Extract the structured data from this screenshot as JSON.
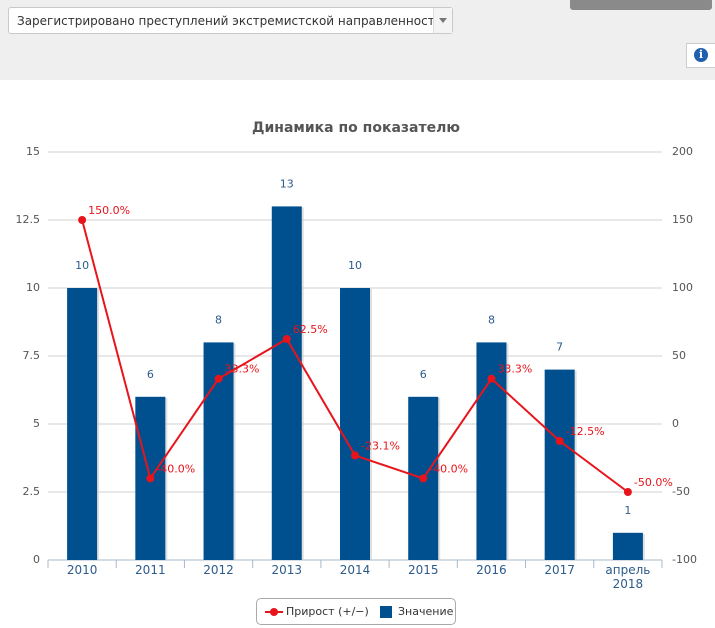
{
  "header": {
    "select": "Зарегистрировано преступлений экстремистской направленности"
  },
  "chart_data": {
    "type": "combo",
    "title": "Динамика по показателю",
    "categories": [
      "2010",
      "2011",
      "2012",
      "2013",
      "2014",
      "2015",
      "2016",
      "2017",
      "апрель 2018"
    ],
    "series": [
      {
        "name": "Прирост (+/−)",
        "type": "line",
        "axis": "y2",
        "color": "#e8141b",
        "values": [
          150,
          -40,
          33.3,
          62.5,
          -23.1,
          -40,
          33.3,
          -12.5,
          -50
        ],
        "value_labels": [
          "150.0%",
          "-40.0%",
          "33.3%",
          "62.5%",
          "-23.1%",
          "-40.0%",
          "33.3%",
          "-12.5%",
          "-50.0%"
        ]
      },
      {
        "name": "Значение",
        "type": "bar",
        "color": "#00508f",
        "values": [
          10,
          6,
          8,
          13,
          10,
          6,
          8,
          7,
          1
        ]
      }
    ],
    "ylim": [
      0,
      15
    ],
    "yticks": [
      0,
      2.5,
      5,
      7.5,
      10,
      12.5,
      15
    ],
    "y2lim": [
      -100,
      200
    ],
    "y2ticks": [
      -100,
      -50,
      0,
      50,
      100,
      150,
      200
    ],
    "grid": true,
    "legend": "bottom"
  }
}
